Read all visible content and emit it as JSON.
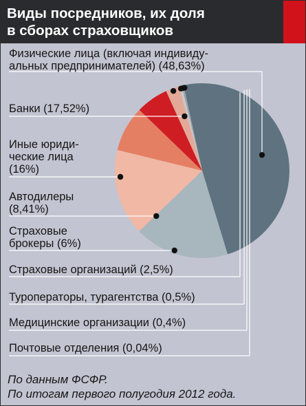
{
  "header": {
    "title_line1": "Виды посредников, их доля",
    "title_line2": "в сборах страховщиков",
    "accent_color": "#d1121b"
  },
  "labels": [
    "Физические лица (включая индивиду-\nальных предпринимателей) (48,63%)",
    "Банки (17,52%)",
    "Иные юриди-\nческие лица\n(16%)",
    "Автодилеры\n(8,41%)",
    "Страховые\nброкеры (6%)",
    "Страховые организаций (2,5%)",
    "Туроператоры,  турагентства (0,5%)",
    "Медицинские организации (0,4%)",
    "Почтовые отделения (0,04%)"
  ],
  "source": {
    "line1": "По данным ФСФР.",
    "line2": "По итогам первого полугодия 2012 года."
  },
  "chart_data": {
    "type": "pie",
    "title": "Виды посредников, их доля в сборах страховщиков",
    "unit": "%",
    "categories": [
      "Физические лица (включая индивидуальных предпринимателей)",
      "Банки",
      "Иные юридические лица",
      "Автодилеры",
      "Страховые брокеры",
      "Страховые организаций",
      "Туроператоры, турагентства",
      "Медицинские организации",
      "Почтовые отделения"
    ],
    "values": [
      48.63,
      17.52,
      16,
      8.41,
      6,
      2.5,
      0.5,
      0.4,
      0.04
    ],
    "colors": [
      "#5e7280",
      "#a8b6bd",
      "#f0b8a5",
      "#e57f63",
      "#cf1d24",
      "#e3a998",
      "#c9c9c9",
      "#9aa3ab",
      "#3a3a3a"
    ]
  }
}
